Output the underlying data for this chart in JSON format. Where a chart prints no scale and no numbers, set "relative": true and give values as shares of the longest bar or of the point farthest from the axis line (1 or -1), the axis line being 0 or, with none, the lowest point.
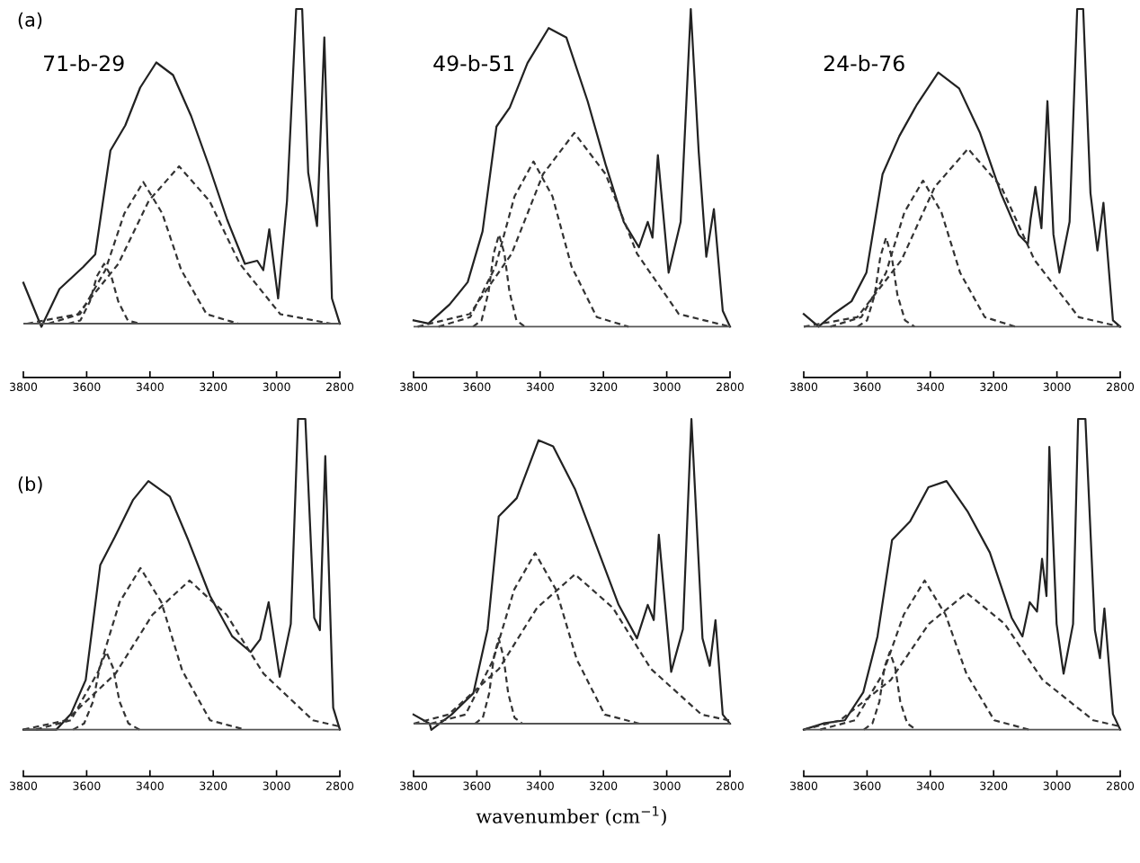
{
  "chart_data": [
    {
      "type": "line",
      "title": "71-b-29",
      "annotations": [
        "(a)"
      ],
      "relative": true,
      "xlim": [
        3800,
        2800
      ],
      "xticks": [
        3800,
        3600,
        3400,
        3200,
        3000,
        2800
      ],
      "tick_labels": "x",
      "ref_lines": [
        {
          "axis": "y",
          "value": 0,
          "color": "#555555"
        }
      ],
      "series": [
        {
          "color": "#222222",
          "line_style": "solid",
          "x": [
            3800,
            3743,
            3686,
            3611,
            3573,
            3525,
            3478,
            3431,
            3380,
            3327,
            3270,
            3213,
            3156,
            3100,
            3061,
            3042,
            3023,
            2995,
            2967,
            2938,
            2919,
            2900,
            2872,
            2849,
            2825,
            2800
          ],
          "values": [
            0.13,
            -0.01,
            0.11,
            0.18,
            0.22,
            0.55,
            0.63,
            0.75,
            0.83,
            0.79,
            0.66,
            0.5,
            0.33,
            0.19,
            0.2,
            0.17,
            0.3,
            0.08,
            0.39,
            1.0,
            1.0,
            0.48,
            0.31,
            0.91,
            0.08,
            0.0
          ]
        },
        {
          "color": "#333333",
          "line_style": "dashed",
          "x": [
            3658,
            3620,
            3590,
            3568,
            3545,
            3522,
            3500,
            3470,
            3432
          ],
          "values": [
            0,
            0.01,
            0.07,
            0.15,
            0.19,
            0.15,
            0.07,
            0.01,
            0
          ]
        },
        {
          "color": "#333333",
          "line_style": "dashed",
          "x": [
            3721,
            3621,
            3541,
            3481,
            3421,
            3361,
            3301,
            3221,
            3121
          ],
          "values": [
            0,
            0.03,
            0.17,
            0.35,
            0.45,
            0.35,
            0.17,
            0.03,
            0
          ]
        },
        {
          "color": "#333333",
          "line_style": "dashed",
          "x": [
            3788,
            3628,
            3500,
            3404,
            3308,
            3212,
            3116,
            2988,
            2828
          ],
          "values": [
            0,
            0.03,
            0.19,
            0.39,
            0.5,
            0.39,
            0.19,
            0.03,
            0
          ]
        }
      ]
    },
    {
      "type": "line",
      "title": "49-b-51",
      "relative": true,
      "xlim": [
        3800,
        2800
      ],
      "xticks": [
        3800,
        3600,
        3400,
        3200,
        3000,
        2800
      ],
      "tick_labels": "x",
      "ref_lines": [
        {
          "axis": "y",
          "value": 0,
          "color": "#555555"
        }
      ],
      "series": [
        {
          "color": "#222222",
          "line_style": "solid",
          "x": [
            3800,
            3753,
            3686,
            3629,
            3582,
            3538,
            3496,
            3440,
            3373,
            3317,
            3250,
            3193,
            3136,
            3088,
            3060,
            3045,
            3028,
            2994,
            2956,
            2924,
            2899,
            2875,
            2851,
            2823,
            2800
          ],
          "values": [
            0.02,
            0.01,
            0.07,
            0.14,
            0.3,
            0.63,
            0.69,
            0.83,
            0.94,
            0.91,
            0.71,
            0.51,
            0.33,
            0.25,
            0.33,
            0.28,
            0.54,
            0.17,
            0.33,
            1.0,
            0.55,
            0.22,
            0.37,
            0.05,
            0.0
          ]
        },
        {
          "color": "#333333",
          "line_style": "dashed",
          "x": [
            3612,
            3585,
            3563,
            3547,
            3530,
            3513,
            3497,
            3475,
            3448
          ],
          "values": [
            0,
            0.02,
            0.11,
            0.23,
            0.29,
            0.23,
            0.11,
            0.02,
            0
          ]
        },
        {
          "color": "#333333",
          "line_style": "dashed",
          "x": [
            3721,
            3621,
            3541,
            3481,
            3421,
            3361,
            3301,
            3221,
            3121
          ],
          "values": [
            0,
            0.03,
            0.19,
            0.41,
            0.52,
            0.41,
            0.19,
            0.03,
            0
          ]
        },
        {
          "color": "#333333",
          "line_style": "dashed",
          "x": [
            3787,
            3622,
            3490,
            3391,
            3292,
            3193,
            3094,
            2962,
            2800
          ],
          "values": [
            0,
            0.04,
            0.23,
            0.48,
            0.61,
            0.48,
            0.23,
            0.04,
            0
          ]
        }
      ]
    },
    {
      "type": "line",
      "title": "24-b-76",
      "relative": true,
      "xlim": [
        3800,
        2800
      ],
      "xticks": [
        3800,
        3600,
        3400,
        3200,
        3000,
        2800
      ],
      "tick_labels": "x",
      "ref_lines": [
        {
          "axis": "y",
          "value": 0,
          "color": "#555555"
        }
      ],
      "series": [
        {
          "color": "#222222",
          "line_style": "solid",
          "x": [
            3800,
            3753,
            3706,
            3649,
            3602,
            3551,
            3498,
            3442,
            3375,
            3309,
            3243,
            3177,
            3121,
            3092,
            3083,
            3068,
            3049,
            3030,
            3011,
            2992,
            2960,
            2936,
            2917,
            2894,
            2872,
            2853,
            2823,
            2800
          ],
          "values": [
            0.04,
            0.0,
            0.04,
            0.08,
            0.17,
            0.48,
            0.6,
            0.7,
            0.8,
            0.75,
            0.61,
            0.42,
            0.29,
            0.26,
            0.34,
            0.44,
            0.31,
            0.71,
            0.29,
            0.17,
            0.33,
            1.0,
            1.0,
            0.42,
            0.24,
            0.39,
            0.02,
            0.0
          ]
        },
        {
          "color": "#333333",
          "line_style": "dashed",
          "x": [
            3630,
            3600,
            3576,
            3558,
            3540,
            3522,
            3504,
            3480,
            3450
          ],
          "values": [
            0,
            0.02,
            0.1,
            0.22,
            0.28,
            0.22,
            0.1,
            0.02,
            0
          ]
        },
        {
          "color": "#333333",
          "line_style": "dashed",
          "x": [
            3716,
            3618,
            3540,
            3482,
            3423,
            3365,
            3306,
            3228,
            3131
          ],
          "values": [
            0,
            0.03,
            0.17,
            0.36,
            0.46,
            0.36,
            0.17,
            0.03,
            0
          ]
        },
        {
          "color": "#333333",
          "line_style": "dashed",
          "x": [
            3800,
            3631,
            3491,
            3386,
            3281,
            3176,
            3071,
            2931,
            2800
          ],
          "values": [
            0,
            0.03,
            0.21,
            0.44,
            0.56,
            0.44,
            0.21,
            0.03,
            0
          ]
        }
      ]
    },
    {
      "type": "line",
      "annotations": [
        "(b)"
      ],
      "relative": true,
      "xlim": [
        3800,
        2800
      ],
      "xticks": [
        3800,
        3600,
        3400,
        3200,
        3000,
        2800
      ],
      "tick_labels": "x",
      "ref_lines": [
        {
          "axis": "y",
          "value": 0,
          "color": "#555555"
        }
      ],
      "series": [
        {
          "color": "#222222",
          "line_style": "solid",
          "x": [
            3800,
            3696,
            3650,
            3603,
            3557,
            3511,
            3453,
            3405,
            3337,
            3279,
            3210,
            3140,
            3082,
            3052,
            3025,
            2990,
            2955,
            2932,
            2909,
            2881,
            2863,
            2846,
            2821,
            2800
          ],
          "values": [
            0.0,
            0.0,
            0.05,
            0.16,
            0.53,
            0.62,
            0.74,
            0.8,
            0.75,
            0.61,
            0.43,
            0.3,
            0.25,
            0.29,
            0.41,
            0.17,
            0.34,
            1.0,
            1.0,
            0.36,
            0.32,
            0.88,
            0.07,
            0.0
          ]
        },
        {
          "color": "#333333",
          "line_style": "dashed",
          "x": [
            3643,
            3608,
            3580,
            3559,
            3538,
            3517,
            3496,
            3468,
            3433
          ],
          "values": [
            0,
            0.02,
            0.09,
            0.2,
            0.25,
            0.2,
            0.09,
            0.02,
            0
          ]
        },
        {
          "color": "#333333",
          "line_style": "dashed",
          "x": [
            3760,
            3650,
            3562,
            3496,
            3430,
            3364,
            3298,
            3210,
            3100
          ],
          "values": [
            0,
            0.03,
            0.19,
            0.41,
            0.52,
            0.41,
            0.19,
            0.03,
            0
          ]
        },
        {
          "color": "#333333",
          "line_style": "dashed",
          "x": [
            3800,
            3665,
            3509,
            3392,
            3275,
            3158,
            3041,
            2885,
            2800
          ],
          "values": [
            0,
            0.03,
            0.18,
            0.37,
            0.48,
            0.37,
            0.18,
            0.03,
            0.01
          ]
        }
      ]
    },
    {
      "type": "line",
      "xlabel": "wavenumber (cm$^{−1}$)",
      "relative": true,
      "xlim": [
        3800,
        2800
      ],
      "xticks": [
        3800,
        3600,
        3400,
        3200,
        3000,
        2800
      ],
      "tick_labels": "x",
      "ref_lines": [
        {
          "axis": "y",
          "value": 0,
          "color": "#555555"
        }
      ],
      "series": [
        {
          "color": "#222222",
          "line_style": "solid",
          "x": [
            3800,
            3749,
            3744,
            3680,
            3611,
            3566,
            3531,
            3474,
            3405,
            3359,
            3290,
            3221,
            3152,
            3094,
            3060,
            3041,
            3025,
            2986,
            2949,
            2922,
            2887,
            2864,
            2846,
            2823,
            2800
          ],
          "values": [
            0.03,
            0.0,
            -0.02,
            0.03,
            0.1,
            0.31,
            0.68,
            0.74,
            0.93,
            0.91,
            0.77,
            0.58,
            0.39,
            0.28,
            0.39,
            0.34,
            0.62,
            0.17,
            0.31,
            1.0,
            0.28,
            0.19,
            0.34,
            0.03,
            0.0
          ]
        },
        {
          "color": "#333333",
          "line_style": "dashed",
          "x": [
            3606,
            3581,
            3561,
            3546,
            3531,
            3516,
            3501,
            3481,
            3456
          ],
          "values": [
            0,
            0.02,
            0.1,
            0.22,
            0.28,
            0.22,
            0.1,
            0.02,
            0
          ]
        },
        {
          "color": "#333333",
          "line_style": "dashed",
          "x": [
            3746,
            3636,
            3548,
            3482,
            3416,
            3350,
            3284,
            3196,
            3086
          ],
          "values": [
            0,
            0.03,
            0.21,
            0.44,
            0.56,
            0.44,
            0.21,
            0.03,
            0
          ]
        },
        {
          "color": "#333333",
          "line_style": "dashed",
          "x": [
            3800,
            3690,
            3530,
            3410,
            3290,
            3170,
            3050,
            2890,
            2800
          ],
          "values": [
            0,
            0.03,
            0.18,
            0.38,
            0.49,
            0.38,
            0.18,
            0.03,
            0.01
          ]
        }
      ]
    },
    {
      "type": "line",
      "relative": true,
      "xlim": [
        3800,
        2800
      ],
      "xticks": [
        3800,
        3600,
        3400,
        3200,
        3000,
        2800
      ],
      "tick_labels": "x",
      "ref_lines": [
        {
          "axis": "y",
          "value": 0,
          "color": "#555555"
        }
      ],
      "series": [
        {
          "color": "#222222",
          "line_style": "solid",
          "x": [
            3800,
            3738,
            3670,
            3612,
            3567,
            3521,
            3464,
            3406,
            3349,
            3281,
            3212,
            3143,
            3109,
            3086,
            3063,
            3047,
            3033,
            3024,
            3001,
            2979,
            2949,
            2933,
            2910,
            2880,
            2864,
            2850,
            2823,
            2800
          ],
          "values": [
            0.0,
            0.02,
            0.03,
            0.12,
            0.3,
            0.61,
            0.67,
            0.78,
            0.8,
            0.7,
            0.57,
            0.36,
            0.3,
            0.41,
            0.38,
            0.55,
            0.43,
            0.91,
            0.34,
            0.18,
            0.34,
            1.0,
            1.0,
            0.32,
            0.23,
            0.39,
            0.05,
            0.0
          ]
        },
        {
          "color": "#333333",
          "line_style": "dashed",
          "x": [
            3610,
            3583,
            3561,
            3545,
            3528,
            3511,
            3495,
            3473,
            3446
          ],
          "values": [
            0,
            0.02,
            0.09,
            0.2,
            0.25,
            0.2,
            0.09,
            0.02,
            0
          ]
        },
        {
          "color": "#333333",
          "line_style": "dashed",
          "x": [
            3748,
            3638,
            3550,
            3484,
            3418,
            3352,
            3286,
            3198,
            3088
          ],
          "values": [
            0,
            0.03,
            0.18,
            0.37,
            0.48,
            0.37,
            0.18,
            0.03,
            0
          ]
        },
        {
          "color": "#333333",
          "line_style": "dashed",
          "x": [
            3800,
            3685,
            3525,
            3405,
            3285,
            3165,
            3045,
            2885,
            2800
          ],
          "values": [
            0,
            0.03,
            0.16,
            0.34,
            0.44,
            0.34,
            0.16,
            0.03,
            0.01
          ]
        }
      ]
    }
  ]
}
